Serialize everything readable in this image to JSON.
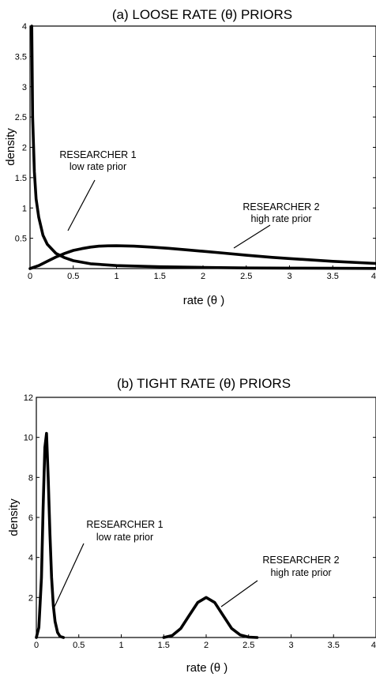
{
  "chart_data": [
    {
      "type": "line",
      "title": "(a) LOOSE RATE (θ) PRIORS",
      "xlabel": "rate (θ )",
      "ylabel": "density",
      "xlim": [
        0,
        4
      ],
      "ylim": [
        0,
        4
      ],
      "x_ticks": [
        "0",
        "0.5",
        "1",
        "1.5",
        "2",
        "2.5",
        "3",
        "3.5",
        "4"
      ],
      "y_ticks": [
        "0.5",
        "1",
        "1.5",
        "2",
        "2.5",
        "3",
        "3.5",
        "4"
      ],
      "grid": false,
      "series": [
        {
          "name": "RESEARCHER 1",
          "x": [
            0.02,
            0.03,
            0.05,
            0.07,
            0.1,
            0.15,
            0.2,
            0.3,
            0.4,
            0.5,
            0.7,
            1.0,
            1.5,
            2.0,
            2.5,
            3.0,
            3.5,
            4.0
          ],
          "y": [
            4.0,
            2.5,
            1.6,
            1.15,
            0.85,
            0.55,
            0.4,
            0.25,
            0.18,
            0.13,
            0.08,
            0.05,
            0.03,
            0.02,
            0.01,
            0.008,
            0.005,
            0.003
          ]
        },
        {
          "name": "RESEARCHER 2",
          "x": [
            0.0,
            0.1,
            0.2,
            0.3,
            0.4,
            0.5,
            0.6,
            0.7,
            0.8,
            0.9,
            1.0,
            1.2,
            1.4,
            1.6,
            1.8,
            2.0,
            2.2,
            2.5,
            2.8,
            3.0,
            3.5,
            4.0
          ],
          "y": [
            0.0,
            0.05,
            0.12,
            0.19,
            0.25,
            0.3,
            0.33,
            0.355,
            0.37,
            0.375,
            0.376,
            0.37,
            0.355,
            0.335,
            0.31,
            0.285,
            0.26,
            0.22,
            0.185,
            0.165,
            0.12,
            0.085
          ]
        }
      ],
      "annotations": [
        {
          "series": "RESEARCHER 1",
          "lines": [
            "RESEARCHER 1",
            "low rate prior"
          ]
        },
        {
          "series": "RESEARCHER 2",
          "lines": [
            "RESEARCHER 2",
            "high rate prior"
          ]
        }
      ]
    },
    {
      "type": "line",
      "title": "(b) TIGHT RATE (θ) PRIORS",
      "xlabel": "rate (θ )",
      "ylabel": "density",
      "xlim": [
        0,
        4
      ],
      "ylim": [
        0,
        12
      ],
      "x_ticks": [
        "0",
        "0.5",
        "1",
        "1.5",
        "2",
        "2.5",
        "3",
        "3.5",
        "4"
      ],
      "y_ticks": [
        "2",
        "4",
        "6",
        "8",
        "10",
        "12"
      ],
      "grid": false,
      "series": [
        {
          "name": "RESEARCHER 1",
          "x": [
            0.0,
            0.03,
            0.06,
            0.08,
            0.1,
            0.12,
            0.14,
            0.16,
            0.18,
            0.2,
            0.22,
            0.25,
            0.28,
            0.32
          ],
          "y": [
            0.0,
            0.5,
            3.0,
            6.5,
            9.5,
            10.2,
            8.0,
            5.2,
            3.0,
            1.6,
            0.8,
            0.25,
            0.05,
            0.0
          ]
        },
        {
          "name": "RESEARCHER 2",
          "x": [
            1.5,
            1.6,
            1.7,
            1.8,
            1.9,
            2.0,
            2.1,
            2.2,
            2.3,
            2.4,
            2.5,
            2.6
          ],
          "y": [
            0.0,
            0.1,
            0.45,
            1.1,
            1.75,
            2.0,
            1.75,
            1.1,
            0.45,
            0.13,
            0.02,
            0.0
          ]
        }
      ],
      "annotations": [
        {
          "series": "RESEARCHER 1",
          "lines": [
            "RESEARCHER 1",
            "low rate prior"
          ]
        },
        {
          "series": "RESEARCHER 2",
          "lines": [
            "RESEARCHER 2",
            "high rate prior"
          ]
        }
      ]
    }
  ]
}
